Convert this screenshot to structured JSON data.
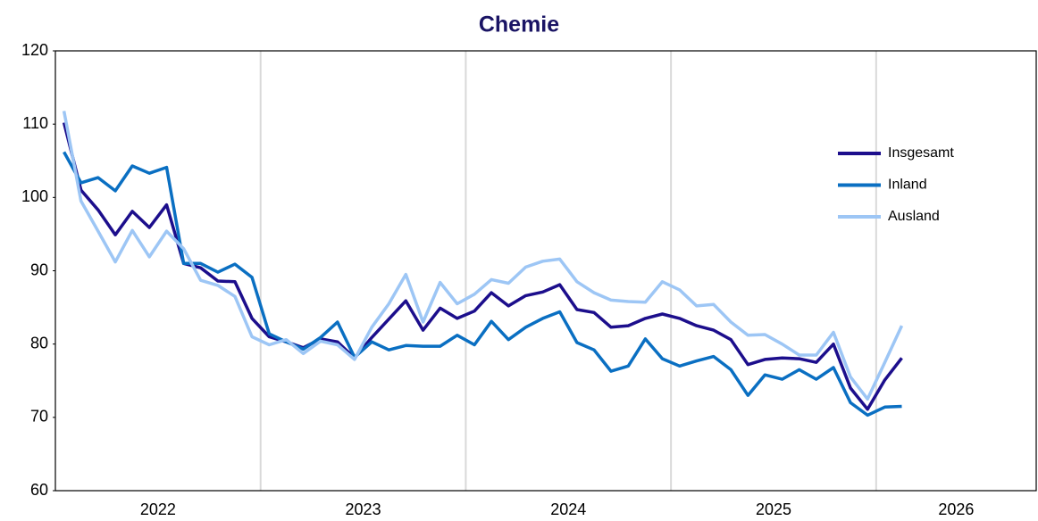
{
  "chart_data": {
    "type": "line",
    "title": "Chemie",
    "x": [
      2022.042,
      2022.125,
      2022.208,
      2022.292,
      2022.375,
      2022.458,
      2022.542,
      2022.625,
      2022.708,
      2022.792,
      2022.875,
      2022.958,
      2023.042,
      2023.125,
      2023.208,
      2023.292,
      2023.375,
      2023.458,
      2023.542,
      2023.625,
      2023.708,
      2023.792,
      2023.875,
      2023.958,
      2024.042,
      2024.125,
      2024.208,
      2024.292,
      2024.375,
      2024.458,
      2024.542,
      2024.625,
      2024.708,
      2024.792,
      2024.875,
      2024.958,
      2025.042,
      2025.125,
      2025.208,
      2025.292,
      2025.375,
      2025.458,
      2025.542,
      2025.625,
      2025.708,
      2025.792,
      2025.875,
      2025.958,
      2026.042,
      2026.125
    ],
    "series": [
      {
        "name": "Insgesamt",
        "color": "#1c0e8c",
        "values": [
          110.2,
          101.0,
          98.3,
          94.9,
          98.1,
          95.9,
          99.0,
          91.0,
          90.4,
          88.6,
          88.5,
          83.5,
          81.0,
          80.3,
          79.5,
          80.7,
          80.3,
          78.1,
          80.9,
          83.4,
          85.9,
          81.9,
          84.9,
          83.5,
          84.5,
          87.0,
          85.2,
          86.6,
          87.1,
          88.1,
          84.7,
          84.3,
          82.3,
          82.5,
          83.5,
          84.1,
          83.5,
          82.5,
          81.9,
          80.6,
          77.2,
          77.9,
          78.1,
          78.0,
          77.5,
          80.0,
          74.0,
          71.1,
          75.1,
          78.1
        ]
      },
      {
        "name": "Inland",
        "color": "#0a6fc2",
        "values": [
          106.2,
          102.0,
          102.7,
          100.9,
          104.3,
          103.3,
          104.1,
          91.0,
          91.0,
          89.8,
          90.9,
          89.1,
          81.4,
          80.3,
          79.3,
          80.9,
          83.0,
          78.2,
          80.3,
          79.2,
          79.8,
          79.7,
          79.7,
          81.2,
          79.9,
          83.1,
          80.6,
          82.3,
          83.5,
          84.4,
          80.2,
          79.2,
          76.3,
          77.0,
          80.7,
          78.0,
          77.0,
          77.7,
          78.3,
          76.5,
          73.0,
          75.8,
          75.2,
          76.5,
          75.2,
          76.8,
          72.0,
          70.3,
          71.4,
          71.5
        ]
      },
      {
        "name": "Ausland",
        "color": "#9dc6f5",
        "values": [
          111.8,
          99.5,
          95.4,
          91.2,
          95.5,
          91.9,
          95.4,
          93.0,
          88.7,
          88.0,
          86.5,
          81.0,
          79.9,
          80.6,
          78.7,
          80.4,
          79.9,
          77.9,
          82.3,
          85.5,
          89.5,
          83.0,
          88.4,
          85.5,
          86.8,
          88.8,
          88.3,
          90.5,
          91.3,
          91.6,
          88.5,
          87.0,
          86.0,
          85.8,
          85.7,
          88.5,
          87.4,
          85.2,
          85.4,
          83.0,
          81.2,
          81.3,
          80.0,
          78.5,
          78.5,
          81.6,
          75.5,
          72.5,
          77.5,
          82.5
        ]
      }
    ],
    "xlim": [
      2022,
      2026.78
    ],
    "xticks": [
      {
        "value": 2022.5,
        "label": "2022"
      },
      {
        "value": 2023.5,
        "label": "2023"
      },
      {
        "value": 2024.5,
        "label": "2024"
      },
      {
        "value": 2025.5,
        "label": "2025"
      },
      {
        "value": 2026.39,
        "label": "2026"
      }
    ],
    "xgrid": [
      2023,
      2024,
      2025,
      2026
    ],
    "ylim": [
      60,
      120
    ],
    "yticks": [
      60,
      70,
      80,
      90,
      100,
      110,
      120
    ],
    "legend_position": "right"
  }
}
